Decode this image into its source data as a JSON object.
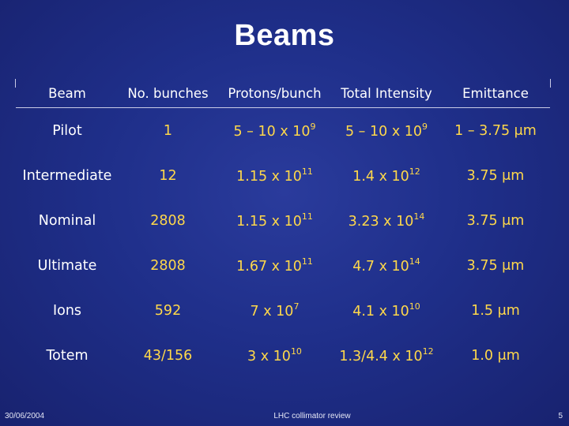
{
  "slide": {
    "title": "Beams",
    "footer": {
      "date": "30/06/2004",
      "center": "LHC collimator review",
      "page": "5"
    }
  },
  "table": {
    "headers": [
      "Beam",
      "No. bunches",
      "Protons/bunch",
      "Total Intensity",
      "Emittance"
    ],
    "rows": [
      {
        "beam": "Pilot",
        "bunches": "1",
        "protons": {
          "mantissa": "5 – 10 x 10",
          "exp": "9"
        },
        "intensity": {
          "mantissa": "5 – 10 x 10",
          "exp": "9"
        },
        "emittance": "1 – 3.75 μm"
      },
      {
        "beam": "Intermediate",
        "bunches": "12",
        "protons": {
          "mantissa": "1.15 x 10",
          "exp": "11"
        },
        "intensity": {
          "mantissa": "1.4 x 10",
          "exp": "12"
        },
        "emittance": "3.75 μm"
      },
      {
        "beam": "Nominal",
        "bunches": "2808",
        "protons": {
          "mantissa": "1.15 x 10",
          "exp": "11"
        },
        "intensity": {
          "mantissa": "3.23 x 10",
          "exp": "14"
        },
        "emittance": "3.75 μm"
      },
      {
        "beam": "Ultimate",
        "bunches": "2808",
        "protons": {
          "mantissa": "1.67 x 10",
          "exp": "11"
        },
        "intensity": {
          "mantissa": "4.7 x 10",
          "exp": "14"
        },
        "emittance": "3.75 μm"
      },
      {
        "beam": "Ions",
        "bunches": "592",
        "protons": {
          "mantissa": "7 x 10",
          "exp": "7"
        },
        "intensity": {
          "mantissa": "4.1 x 10",
          "exp": "10"
        },
        "emittance": "1.5 μm"
      },
      {
        "beam": "Totem",
        "bunches": "43/156",
        "protons": {
          "mantissa": "3 x 10",
          "exp": "10"
        },
        "intensity": {
          "mantissa": "1.3/4.4 x 10",
          "exp": "12"
        },
        "emittance": "1.0 μm"
      }
    ]
  },
  "colors": {
    "background": "#1f2f8a",
    "text": "#ffffff",
    "value": "#ffd84a"
  }
}
